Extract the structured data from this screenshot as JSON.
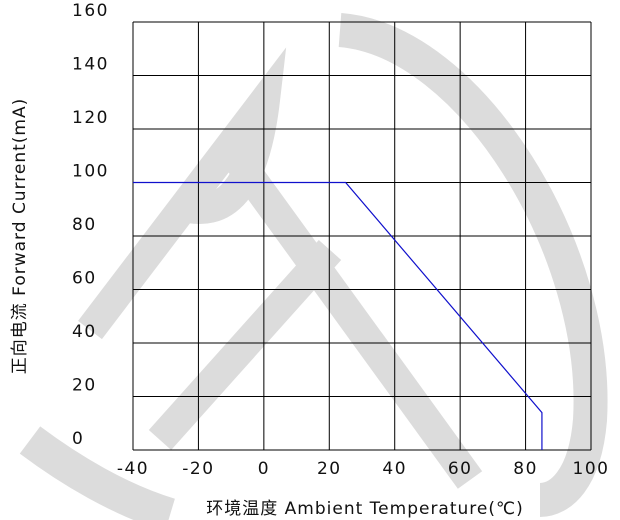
{
  "chart_data": {
    "type": "line",
    "title": "",
    "xlabel": "环境温度  Ambient Temperature(℃)",
    "ylabel": "正向电流 Forward Current(mA)",
    "xlim": [
      -40,
      100
    ],
    "ylim": [
      0,
      160
    ],
    "x_ticks": [
      "-40",
      "-20",
      "0",
      "20",
      "40",
      "60",
      "80",
      "100"
    ],
    "y_ticks": [
      "0",
      "20",
      "40",
      "60",
      "80",
      "100",
      "120",
      "140",
      "160"
    ],
    "grid": true,
    "series": [
      {
        "color": "#1010cc",
        "points": [
          [
            -40,
            100
          ],
          [
            25,
            100
          ],
          [
            85,
            14
          ],
          [
            85,
            0
          ]
        ]
      }
    ]
  },
  "colors": {
    "line": "#1010cc",
    "grid": "#000000",
    "watermark": "#dcdcdc"
  }
}
